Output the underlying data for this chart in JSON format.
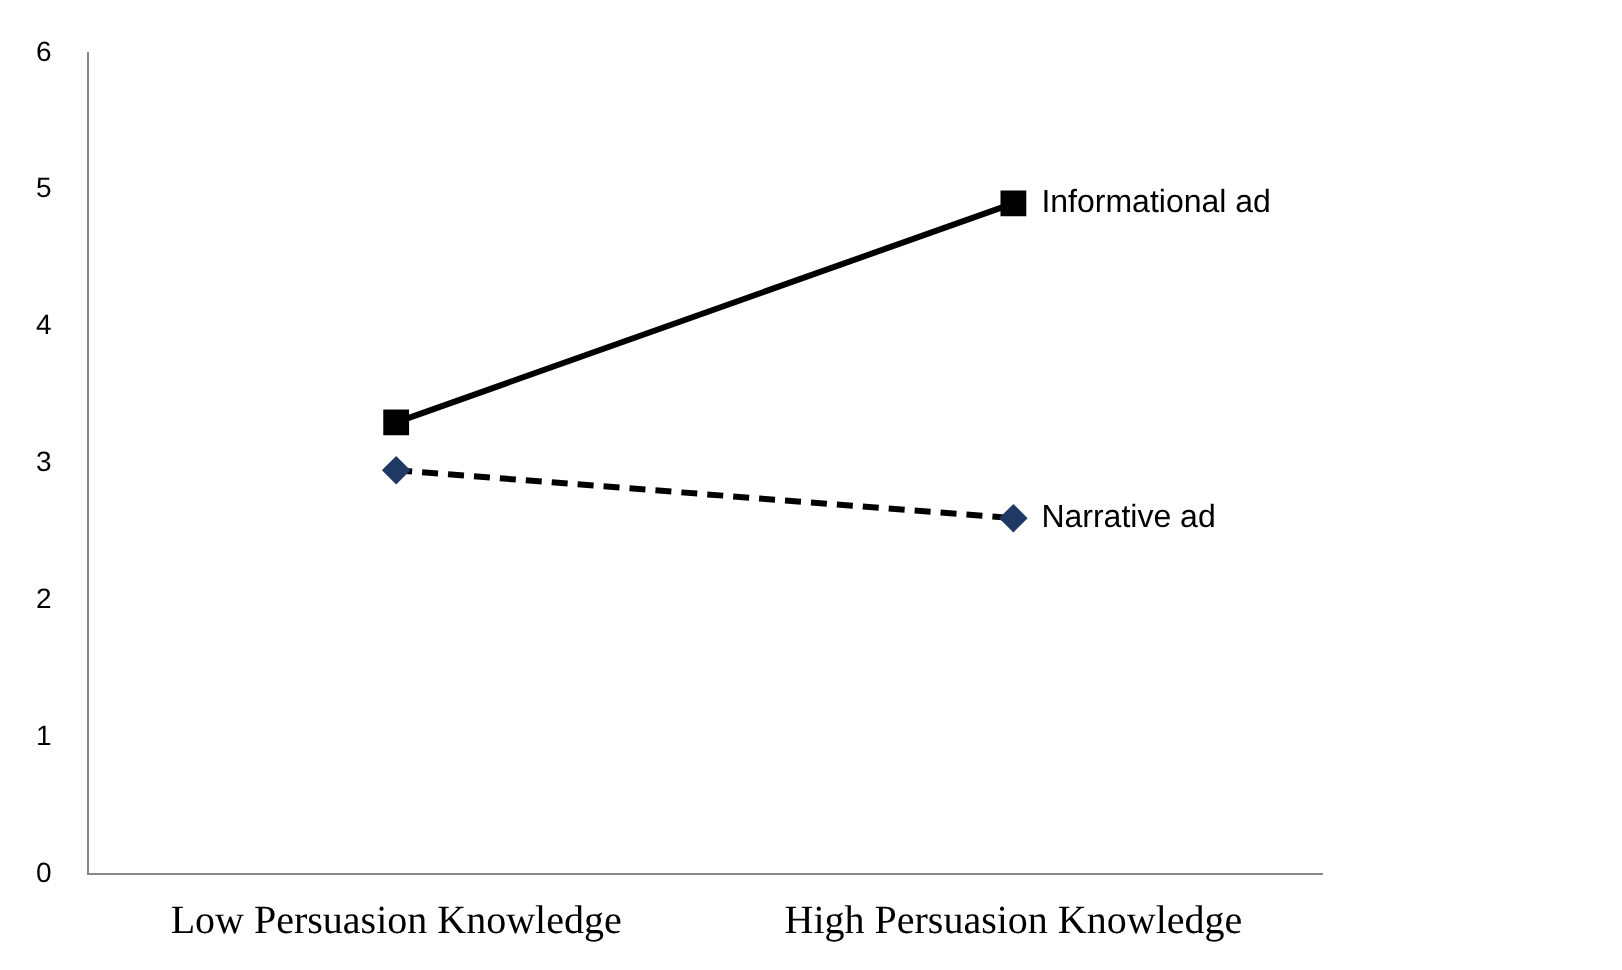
{
  "chart_data": {
    "type": "line",
    "categories": [
      "Low Persuasion Knowledge",
      "High Persuasion Knowledge"
    ],
    "series": [
      {
        "name": "Informational ad",
        "color": "#000000",
        "values": [
          3.3,
          4.9
        ],
        "marker": "square",
        "line_style": "solid"
      },
      {
        "name": "Narrative ad",
        "color": "#1f3864",
        "values": [
          2.95,
          2.6
        ],
        "marker": "diamond",
        "line_style": "dashed"
      }
    ],
    "ylim": [
      0,
      6
    ],
    "yticks": [
      0,
      1,
      2,
      3,
      4,
      5,
      6
    ],
    "grid": false,
    "legend": false
  }
}
